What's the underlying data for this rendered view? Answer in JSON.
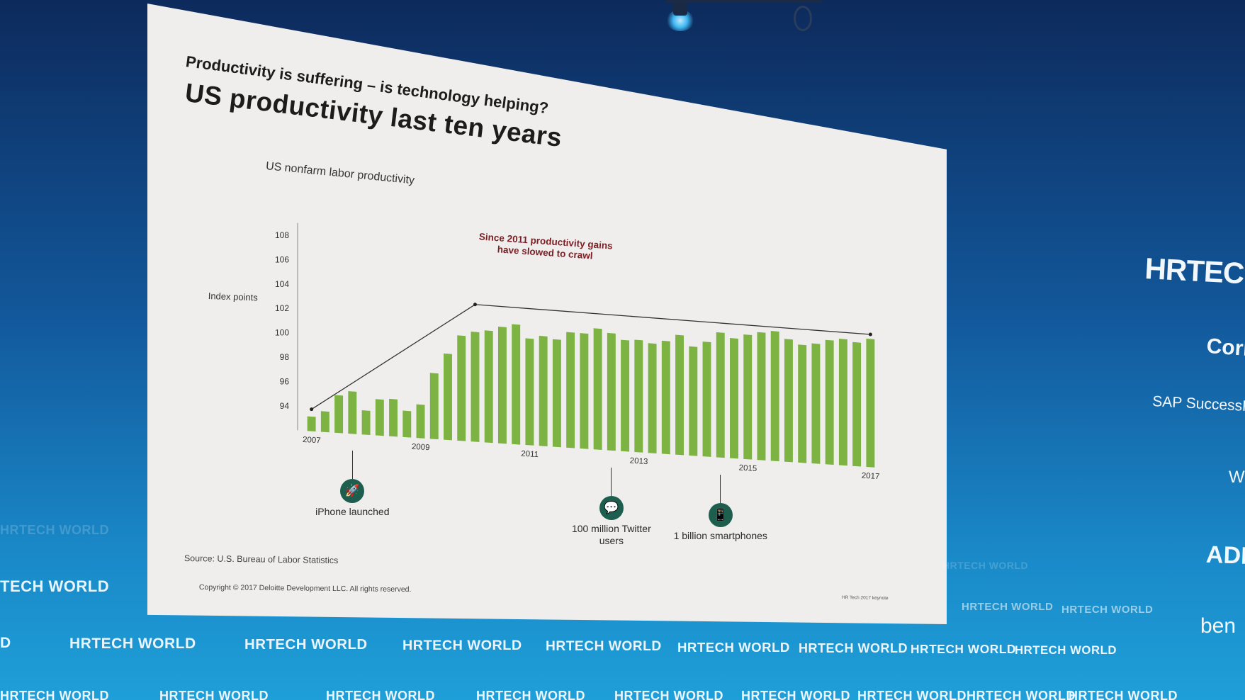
{
  "slide": {
    "supertitle": "Productivity is suffering – is technology helping?",
    "title": "US productivity last ten years",
    "source": "Source: U.S. Bureau of Labor Statistics",
    "copyright": "Copyright © 2017 Deloitte Development LLC. All rights reserved.",
    "keynote_tag": "HR Tech 2017 keynote"
  },
  "chart_data": {
    "type": "bar",
    "title": "US nonfarm labor productivity",
    "ylabel": "Index points",
    "ylim": [
      92,
      109
    ],
    "yticks": [
      94,
      96,
      98,
      100,
      102,
      104,
      106,
      108
    ],
    "xtick_labels": [
      "2007",
      "2009",
      "2011",
      "2013",
      "2015",
      "2017"
    ],
    "bar_color": "#7cb342",
    "values": [
      93.2,
      93.7,
      95.1,
      95.5,
      94.0,
      95.0,
      95.1,
      94.2,
      94.8,
      97.5,
      99.2,
      100.8,
      101.2,
      101.4,
      101.8,
      102.1,
      101.0,
      101.3,
      101.1,
      101.8,
      101.8,
      102.3,
      102.0,
      101.5,
      101.6,
      101.4,
      101.7,
      102.3,
      101.4,
      101.9,
      102.8,
      102.4,
      102.8,
      103.1,
      103.3,
      102.7,
      102.3,
      102.5,
      102.9,
      103.1,
      102.9,
      103.3
    ],
    "trend_line": [
      {
        "index": 0,
        "value": 93.8
      },
      {
        "index": 12,
        "value": 103.5
      },
      {
        "index": 41,
        "value": 103.7
      }
    ],
    "annotation": "Since 2011 productivity gains have slowed to crawl",
    "annotation_color": "#7a1f24"
  },
  "markers": [
    {
      "bar_index": 3,
      "icon": "rocket-icon",
      "glyph": "🚀",
      "caption": "iPhone launched"
    },
    {
      "bar_index": 22,
      "icon": "speech-bubble-icon",
      "glyph": "💬",
      "caption": "100 million Twitter users"
    },
    {
      "bar_index": 30,
      "icon": "smartphone-icon",
      "glyph": "📱",
      "caption": "1 billion smartphones"
    }
  ],
  "sponsors": {
    "hrtech": "HRTECH",
    "cornerstone": "Corn",
    "sap": "SAP SuccessFac",
    "w": "W",
    "adp": "ADP",
    "ben": "ben"
  },
  "banner": {
    "wordmark": "HRTECH WORLD",
    "edge_left": "TECH WORLD",
    "edge_d": "D"
  }
}
